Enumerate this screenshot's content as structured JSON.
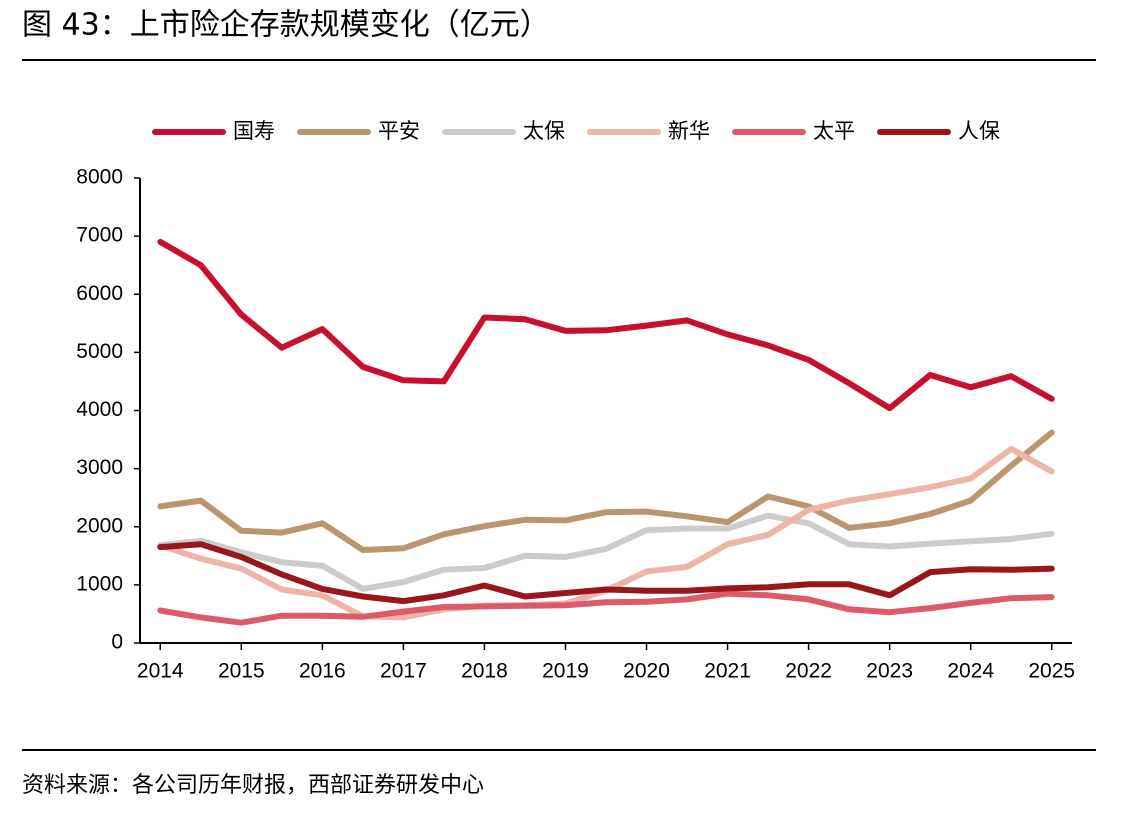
{
  "chart_data": {
    "type": "line",
    "title": "图 43：上市险企存款规模变化（亿元）",
    "source": "资料来源：各公司历年财报，西部证券研发中心",
    "x": [
      2014,
      2014.5,
      2015,
      2015.5,
      2016,
      2016.5,
      2017,
      2017.5,
      2018,
      2018.5,
      2019,
      2019.5,
      2020,
      2020.5,
      2021,
      2021.5,
      2022,
      2022.5,
      2023,
      2023.5,
      2024,
      2024.5,
      2025
    ],
    "xlim": [
      2013.75,
      2025.25
    ],
    "xticks": [
      2014,
      2015,
      2016,
      2017,
      2018,
      2019,
      2020,
      2021,
      2022,
      2023,
      2024,
      2025
    ],
    "ylim": [
      0,
      8000
    ],
    "yticks": [
      0,
      1000,
      2000,
      3000,
      4000,
      5000,
      6000,
      7000,
      8000
    ],
    "legend": "top",
    "series": [
      {
        "name": "国寿",
        "color": "#c8102e",
        "values": [
          6900,
          6500,
          5650,
          5080,
          5400,
          4750,
          4520,
          4500,
          5600,
          5570,
          5370,
          5380,
          5460,
          5550,
          5310,
          5120,
          4870,
          4470,
          4040,
          4610,
          4400,
          4590,
          4200
        ]
      },
      {
        "name": "平安",
        "color": "#b99670",
        "values": [
          2350,
          2450,
          1930,
          1900,
          2060,
          1600,
          1630,
          1870,
          2010,
          2120,
          2110,
          2250,
          2260,
          2180,
          2080,
          2520,
          2350,
          1980,
          2060,
          2220,
          2450,
          3050,
          3620
        ]
      },
      {
        "name": "太保",
        "color": "#cccccc",
        "values": [
          1680,
          1760,
          1560,
          1390,
          1330,
          930,
          1050,
          1260,
          1290,
          1500,
          1480,
          1620,
          1940,
          1970,
          1970,
          2190,
          2060,
          1700,
          1660,
          1710,
          1750,
          1790,
          1880
        ]
      },
      {
        "name": "新华",
        "color": "#ecb5a8",
        "values": [
          1680,
          1450,
          1280,
          920,
          820,
          460,
          440,
          580,
          640,
          650,
          680,
          900,
          1230,
          1310,
          1700,
          1860,
          2290,
          2450,
          2560,
          2680,
          2830,
          3340,
          2950
        ]
      },
      {
        "name": "太平",
        "color": "#dc5a6a",
        "values": [
          560,
          440,
          350,
          470,
          470,
          450,
          540,
          620,
          630,
          640,
          650,
          700,
          710,
          750,
          850,
          820,
          750,
          580,
          530,
          600,
          690,
          770,
          790
        ]
      },
      {
        "name": "人保",
        "color": "#98161c",
        "values": [
          1650,
          1700,
          1480,
          1180,
          930,
          800,
          720,
          820,
          990,
          800,
          860,
          920,
          900,
          900,
          940,
          960,
          1010,
          1010,
          820,
          1220,
          1270,
          1260,
          1280
        ]
      }
    ]
  }
}
